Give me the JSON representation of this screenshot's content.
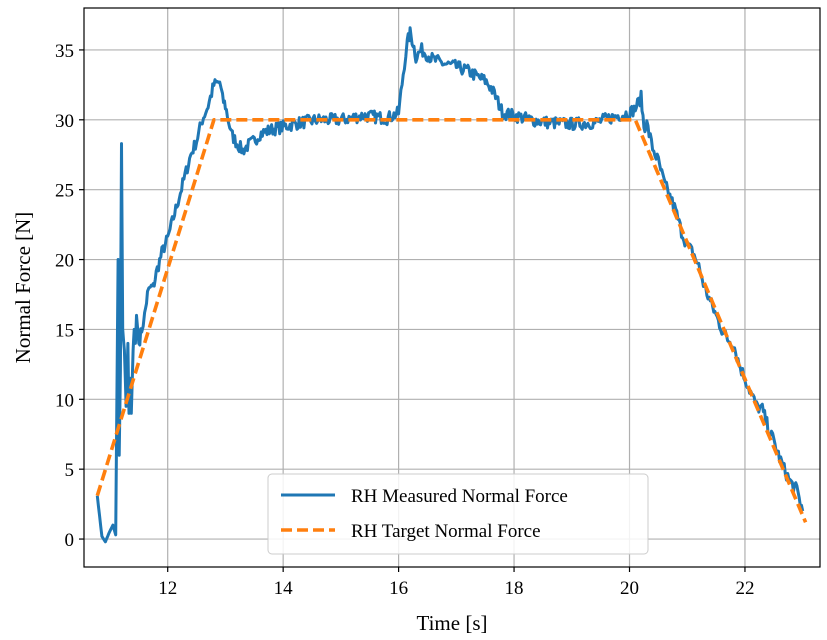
{
  "chart_data": {
    "type": "line",
    "title": "",
    "xlabel": "Time [s]",
    "ylabel": "Normal Force [N]",
    "xlim": [
      10.55,
      23.3
    ],
    "ylim": [
      -2,
      38
    ],
    "xticks": [
      12,
      14,
      16,
      18,
      20,
      22
    ],
    "yticks": [
      0,
      5,
      10,
      15,
      20,
      25,
      30,
      35
    ],
    "xtick_labels": [
      "12",
      "14",
      "16",
      "18",
      "20",
      "22"
    ],
    "ytick_labels": [
      "0",
      "5",
      "10",
      "15",
      "20",
      "25",
      "30",
      "35"
    ],
    "grid": true,
    "legend_position": "lower-center",
    "series": [
      {
        "name": "RH Measured Normal Force",
        "color": "#1f77b4",
        "style": "solid",
        "x": [
          10.78,
          10.86,
          10.92,
          10.98,
          11.05,
          11.1,
          11.14,
          11.16,
          11.18,
          11.2,
          11.22,
          11.25,
          11.28,
          11.31,
          11.33,
          11.35,
          11.37,
          11.4,
          11.42,
          11.44,
          11.46,
          11.48,
          11.5,
          11.55,
          11.6,
          11.65,
          11.7,
          11.75,
          11.8,
          11.9,
          12.0,
          12.1,
          12.2,
          12.3,
          12.4,
          12.5,
          12.6,
          12.7,
          12.8,
          12.9,
          12.95,
          13.0,
          13.05,
          13.1,
          13.2,
          13.3,
          13.4,
          13.5,
          13.6,
          13.8,
          14.0,
          14.3,
          14.6,
          15.0,
          15.4,
          15.8,
          16.0,
          16.1,
          16.15,
          16.2,
          16.25,
          16.3,
          16.4,
          16.6,
          16.8,
          17.0,
          17.2,
          17.4,
          17.5,
          17.6,
          17.7,
          17.8,
          18.0,
          18.3,
          18.6,
          19.0,
          19.4,
          19.8,
          20.0,
          20.1,
          20.2,
          20.25,
          20.3,
          20.4,
          20.5,
          20.6,
          20.7,
          20.8,
          20.9,
          21.0,
          21.1,
          21.2,
          21.3,
          21.4,
          21.5,
          21.6,
          21.7,
          21.8,
          21.9,
          22.0,
          22.1,
          22.2,
          22.3,
          22.4,
          22.5,
          22.6,
          22.7,
          22.8,
          22.9,
          23.0
        ],
        "values": [
          3.1,
          0.2,
          -0.2,
          0.4,
          1.0,
          0.3,
          20.0,
          6.0,
          12.0,
          28.3,
          15.0,
          13.5,
          9.5,
          14.0,
          9.0,
          11.5,
          9.0,
          13.5,
          15.0,
          14.0,
          16.0,
          15.0,
          14.0,
          15.0,
          16.0,
          17.5,
          18.0,
          18.0,
          19.0,
          20.5,
          21.5,
          23.0,
          24.5,
          26.0,
          27.5,
          28.5,
          30.0,
          31.0,
          32.5,
          32.7,
          31.5,
          31.0,
          30.0,
          29.0,
          28.3,
          27.8,
          28.2,
          28.5,
          29.0,
          29.3,
          29.5,
          29.8,
          30.0,
          30.0,
          30.3,
          30.1,
          30.5,
          34.0,
          35.5,
          36.2,
          35.5,
          34.5,
          35.0,
          34.3,
          34.0,
          33.8,
          33.5,
          33.0,
          32.8,
          32.3,
          31.5,
          30.5,
          30.3,
          30.0,
          29.8,
          29.7,
          29.8,
          30.3,
          30.5,
          30.8,
          31.6,
          29.5,
          29.7,
          28.0,
          27.0,
          25.5,
          24.5,
          23.5,
          22.0,
          21.0,
          20.5,
          19.5,
          18.0,
          17.0,
          16.0,
          15.0,
          14.3,
          14.0,
          12.5,
          11.5,
          10.5,
          9.5,
          9.3,
          8.0,
          7.0,
          5.8,
          4.8,
          4.0,
          3.5,
          2.0
        ],
        "smooth_noise": true
      },
      {
        "name": "RH Target Normal Force",
        "color": "#ff7f0e",
        "style": "dashed",
        "x": [
          10.78,
          12.8,
          20.1,
          23.05
        ],
        "values": [
          3.1,
          30.0,
          30.0,
          1.2
        ]
      }
    ]
  }
}
